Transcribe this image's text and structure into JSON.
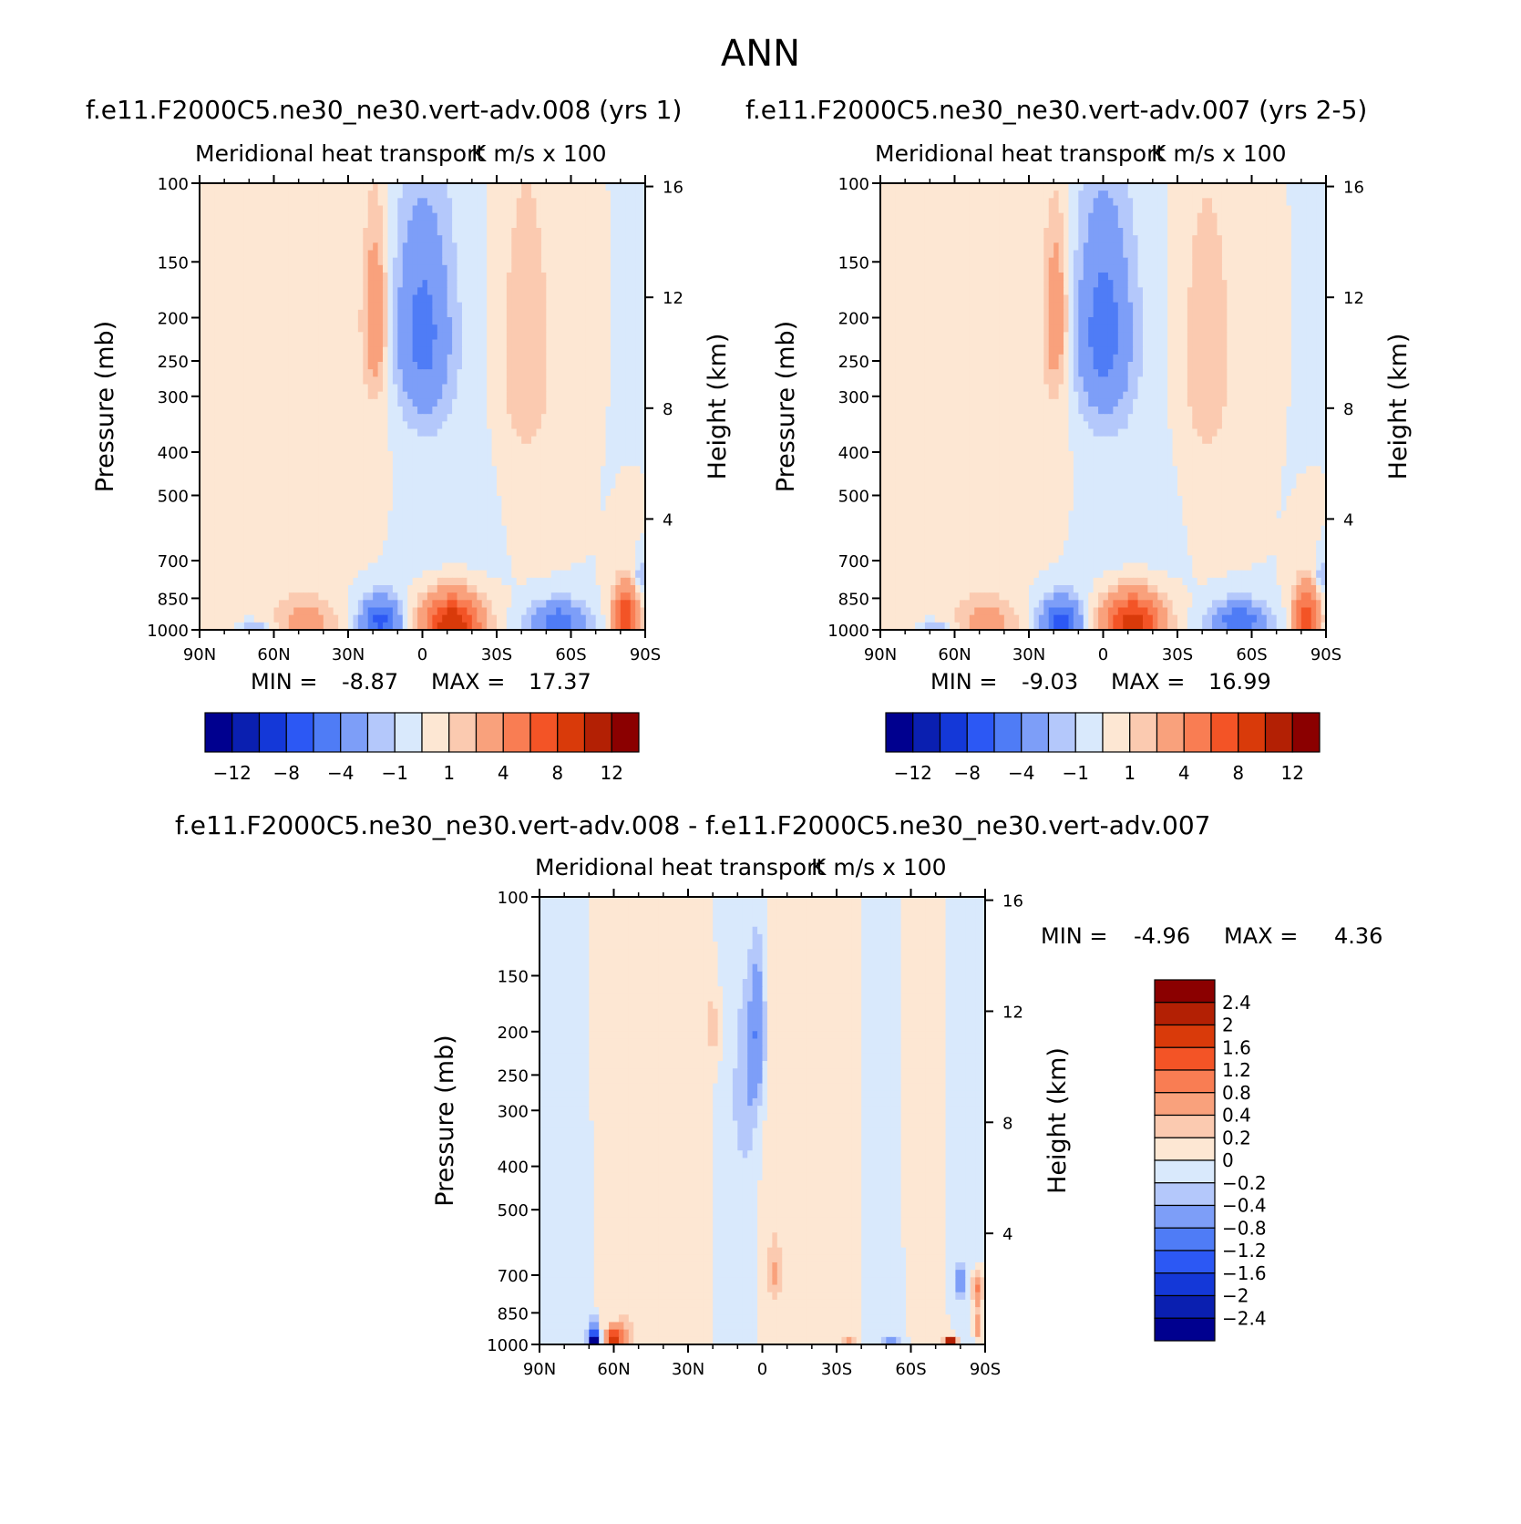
{
  "figure": {
    "title": "ANN"
  },
  "colors": {
    "scale_12": [
      "#00008f",
      "#0a1fb0",
      "#1438d8",
      "#2c58f4",
      "#4f7cf6",
      "#7d9ef8",
      "#b4c8fb",
      "#d9e9fc",
      "#fde7d3",
      "#fbcab0",
      "#f9a17c",
      "#f97d53",
      "#f35426",
      "#d93a0a",
      "#b32004",
      "#8b0000"
    ],
    "scale_diff": [
      "#00008f",
      "#0a1fb0",
      "#1438d8",
      "#2c58f4",
      "#4f7cf6",
      "#7d9ef8",
      "#b4c8fb",
      "#d9e9fc",
      "#fde7d3",
      "#fbcab0",
      "#f9a17c",
      "#f97d53",
      "#f35426",
      "#d93a0a",
      "#b32004",
      "#8b0000"
    ]
  },
  "chart_data": [
    {
      "type": "heatmap",
      "title": "f.e11.F2000C5.ne30_ne30.vert-adv.008 (yrs 1)",
      "subtitle": "Meridional heat transport",
      "units": "K m/s x 100",
      "xlabel": "",
      "ylabel": "Pressure (mb)",
      "ylabel_right": "Height (km)",
      "x_ticks": [
        "90N",
        "60N",
        "30N",
        "0",
        "30S",
        "60S",
        "90S"
      ],
      "y_ticks": [
        100,
        150,
        200,
        250,
        300,
        400,
        500,
        700,
        850,
        1000
      ],
      "y_right_ticks": [
        16,
        12,
        8,
        4
      ],
      "xlim": [
        90,
        -90
      ],
      "ylim": [
        1000,
        100
      ],
      "min_label": "MIN =",
      "min": "-8.87",
      "max_label": "MAX =",
      "max": "17.37",
      "colorbar": {
        "orientation": "horizontal",
        "tick_labels": [
          "-12",
          "-8",
          "-4",
          "-1",
          "1",
          "4",
          "8",
          "12"
        ],
        "levels": [
          -14,
          -12,
          -10,
          -8,
          -6,
          -4,
          -2,
          -1,
          0,
          1,
          2,
          4,
          6,
          8,
          10,
          12,
          14
        ]
      },
      "features": [
        {
          "lat": 80,
          "p": 740,
          "wlat": 7,
          "wp": 330,
          "v": 0.4
        },
        {
          "lat": 70,
          "p": 500,
          "wlat": 16,
          "wp": 480,
          "v": 0.3
        },
        {
          "lat": 47,
          "p": 965,
          "wlat": 12,
          "wp": 130,
          "v": 3.0
        },
        {
          "lat": 68,
          "p": 985,
          "wlat": 6,
          "wp": 30,
          "v": -2.0
        },
        {
          "lat": 17,
          "p": 960,
          "wlat": 8,
          "wp": 115,
          "v": -6.5
        },
        {
          "lat": -12,
          "p": 965,
          "wlat": 12,
          "wp": 140,
          "v": 10.0
        },
        {
          "lat": -55,
          "p": 960,
          "wlat": 11,
          "wp": 95,
          "v": -5.5
        },
        {
          "lat": -82,
          "p": 940,
          "wlat": 5,
          "wp": 150,
          "v": 8.0
        },
        {
          "lat": -88,
          "p": 765,
          "wlat": 2,
          "wp": 70,
          "v": -2.5
        },
        {
          "lat": 19,
          "p": 200,
          "wlat": 5,
          "wp": 90,
          "v": 3.5
        },
        {
          "lat": 0,
          "p": 215,
          "wlat": 11,
          "wp": 110,
          "v": -4.5
        },
        {
          "lat": -42,
          "p": 240,
          "wlat": 11,
          "wp": 160,
          "v": 1.6
        },
        {
          "lat": -40,
          "p": 300,
          "wlat": 13,
          "wp": 420,
          "v": 0.4
        },
        {
          "lat": 23,
          "p": 400,
          "wlat": 17,
          "wp": 330,
          "v": 0.4
        },
        {
          "lat": -9,
          "p": 500,
          "wlat": 25,
          "wp": 650,
          "v": -0.5
        }
      ]
    },
    {
      "type": "heatmap",
      "title": "f.e11.F2000C5.ne30_ne30.vert-adv.007 (yrs 2-5)",
      "subtitle": "Meridional heat transport",
      "units": "K m/s x 100",
      "xlabel": "",
      "ylabel": "Pressure (mb)",
      "ylabel_right": "Height (km)",
      "x_ticks": [
        "90N",
        "60N",
        "30N",
        "0",
        "30S",
        "60S",
        "90S"
      ],
      "y_ticks": [
        100,
        150,
        200,
        250,
        300,
        400,
        500,
        700,
        850,
        1000
      ],
      "y_right_ticks": [
        16,
        12,
        8,
        4
      ],
      "xlim": [
        90,
        -90
      ],
      "ylim": [
        1000,
        100
      ],
      "min_label": "MIN =",
      "min": "-9.03",
      "max_label": "MAX =",
      "max": "16.99",
      "colorbar": {
        "orientation": "horizontal",
        "tick_labels": [
          "-12",
          "-8",
          "-4",
          "-1",
          "1",
          "4",
          "8",
          "12"
        ],
        "levels": [
          -14,
          -12,
          -10,
          -8,
          -6,
          -4,
          -2,
          -1,
          0,
          1,
          2,
          4,
          6,
          8,
          10,
          12,
          14
        ]
      },
      "features": [
        {
          "lat": 80,
          "p": 740,
          "wlat": 7,
          "wp": 330,
          "v": 0.4
        },
        {
          "lat": 70,
          "p": 500,
          "wlat": 16,
          "wp": 480,
          "v": 0.3
        },
        {
          "lat": 47,
          "p": 965,
          "wlat": 12,
          "wp": 130,
          "v": 3.0
        },
        {
          "lat": 68,
          "p": 985,
          "wlat": 6,
          "wp": 30,
          "v": -2.0
        },
        {
          "lat": 17,
          "p": 960,
          "wlat": 8,
          "wp": 115,
          "v": -6.8
        },
        {
          "lat": -12,
          "p": 965,
          "wlat": 12,
          "wp": 140,
          "v": 9.8
        },
        {
          "lat": -55,
          "p": 960,
          "wlat": 11,
          "wp": 95,
          "v": -5.6
        },
        {
          "lat": -82,
          "p": 940,
          "wlat": 5,
          "wp": 150,
          "v": 7.5
        },
        {
          "lat": -88,
          "p": 765,
          "wlat": 2,
          "wp": 70,
          "v": -2.5
        },
        {
          "lat": 19,
          "p": 200,
          "wlat": 5,
          "wp": 90,
          "v": 3.3
        },
        {
          "lat": 0,
          "p": 215,
          "wlat": 11,
          "wp": 110,
          "v": -4.8
        },
        {
          "lat": -42,
          "p": 240,
          "wlat": 11,
          "wp": 160,
          "v": 1.5
        },
        {
          "lat": -40,
          "p": 300,
          "wlat": 13,
          "wp": 420,
          "v": 0.4
        },
        {
          "lat": 23,
          "p": 400,
          "wlat": 17,
          "wp": 330,
          "v": 0.4
        },
        {
          "lat": -9,
          "p": 500,
          "wlat": 25,
          "wp": 650,
          "v": -0.5
        }
      ]
    },
    {
      "type": "heatmap",
      "title": "f.e11.F2000C5.ne30_ne30.vert-adv.008 - f.e11.F2000C5.ne30_ne30.vert-adv.007",
      "subtitle": "Meridional heat transport",
      "units": "K m/s x 100",
      "xlabel": "",
      "ylabel": "Pressure (mb)",
      "ylabel_right": "Height (km)",
      "x_ticks": [
        "90N",
        "60N",
        "30N",
        "0",
        "30S",
        "60S",
        "90S"
      ],
      "y_ticks": [
        100,
        150,
        200,
        250,
        300,
        400,
        500,
        700,
        850,
        1000
      ],
      "y_right_ticks": [
        16,
        12,
        8,
        4
      ],
      "xlim": [
        90,
        -90
      ],
      "ylim": [
        1000,
        100
      ],
      "min_label": "MIN =",
      "min": "-4.96",
      "max_label": "MAX =",
      "max": "4.36",
      "colorbar": {
        "orientation": "vertical",
        "tick_labels": [
          "2.4",
          "2",
          "1.6",
          "1.2",
          "0.8",
          "0.4",
          "0.2",
          "0",
          "-0.2",
          "-0.4",
          "-0.8",
          "-1.2",
          "-1.6",
          "-2",
          "-2.4"
        ],
        "levels": [
          -2.8,
          -2.4,
          -2,
          -1.6,
          -1.2,
          -0.8,
          -0.4,
          -0.2,
          0,
          0.2,
          0.4,
          0.8,
          1.2,
          1.6,
          2,
          2.4,
          2.8
        ]
      },
      "features": [
        {
          "lat": 60,
          "p": 520,
          "wlat": 7,
          "wp": 600,
          "v": 0.12
        },
        {
          "lat": 28,
          "p": 450,
          "wlat": 7,
          "wp": 600,
          "v": 0.12
        },
        {
          "lat": -5,
          "p": 600,
          "wlat": 6,
          "wp": 500,
          "v": 0.15
        },
        {
          "lat": -30,
          "p": 500,
          "wlat": 8,
          "wp": 650,
          "v": 0.12
        },
        {
          "lat": -62,
          "p": 450,
          "wlat": 7,
          "wp": 600,
          "v": 0.1
        },
        {
          "lat": 75,
          "p": 600,
          "wlat": 5,
          "wp": 500,
          "v": -0.12
        },
        {
          "lat": 10,
          "p": 500,
          "wlat": 8,
          "wp": 600,
          "v": -0.12
        },
        {
          "lat": -50,
          "p": 600,
          "wlat": 8,
          "wp": 600,
          "v": -0.12
        },
        {
          "lat": -84,
          "p": 400,
          "wlat": 5,
          "wp": 500,
          "v": -0.12
        },
        {
          "lat": 2,
          "p": 200,
          "wlat": 3,
          "wp": 70,
          "v": -0.7
        },
        {
          "lat": 6,
          "p": 270,
          "wlat": 5,
          "wp": 110,
          "v": -0.3
        },
        {
          "lat": 20,
          "p": 195,
          "wlat": 3,
          "wp": 35,
          "v": 0.3
        },
        {
          "lat": -5,
          "p": 690,
          "wlat": 3,
          "wp": 90,
          "v": 0.3
        },
        {
          "lat": 68,
          "p": 985,
          "wlat": 2,
          "wp": 40,
          "v": -3.0
        },
        {
          "lat": 68,
          "p": 930,
          "wlat": 2,
          "wp": 70,
          "v": -0.6
        },
        {
          "lat": 60,
          "p": 975,
          "wlat": 3,
          "wp": 50,
          "v": 2.0
        },
        {
          "lat": 55,
          "p": 940,
          "wlat": 4,
          "wp": 70,
          "v": 0.4
        },
        {
          "lat": -35,
          "p": 980,
          "wlat": 3,
          "wp": 30,
          "v": 0.4
        },
        {
          "lat": -52,
          "p": 985,
          "wlat": 4,
          "wp": 30,
          "v": -0.5
        },
        {
          "lat": -76,
          "p": 988,
          "wlat": 2,
          "wp": 18,
          "v": 3.0
        },
        {
          "lat": -87,
          "p": 750,
          "wlat": 2,
          "wp": 60,
          "v": 1.0
        },
        {
          "lat": -80,
          "p": 720,
          "wlat": 2,
          "wp": 60,
          "v": -0.7
        },
        {
          "lat": -87,
          "p": 900,
          "wlat": 1.5,
          "wp": 60,
          "v": 0.8
        }
      ]
    }
  ]
}
